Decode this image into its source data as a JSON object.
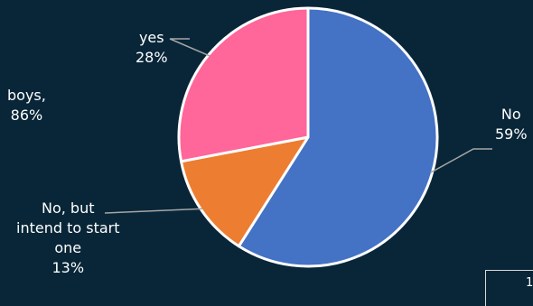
{
  "chart_data": {
    "type": "pie",
    "title": "",
    "slices": [
      {
        "label": "No",
        "percent_label": "59%",
        "value": 59,
        "color": "#4472C4"
      },
      {
        "label": "No, but intend to start one",
        "percent_label": "13%",
        "value": 13,
        "color": "#ED7D31"
      },
      {
        "label": "yes",
        "percent_label": "28%",
        "value": 28,
        "color": "#FF6699"
      }
    ],
    "start": "12 o'clock",
    "direction": "clockwise",
    "legend": "none"
  },
  "fragments": {
    "left_partial_label": "boys,",
    "left_partial_value": "86%",
    "corner_partial": "1"
  },
  "labels": {
    "no_line1": "No",
    "no_line2": "59%",
    "intend_line1": "No, but",
    "intend_line2": "intend to start",
    "intend_line3": "one",
    "intend_line4": "13%",
    "yes_line1": "yes",
    "yes_line2": "28%"
  },
  "colors": {
    "background": "#082638",
    "slice_border": "#ffffff",
    "leader_line": "#a6a6a6"
  }
}
